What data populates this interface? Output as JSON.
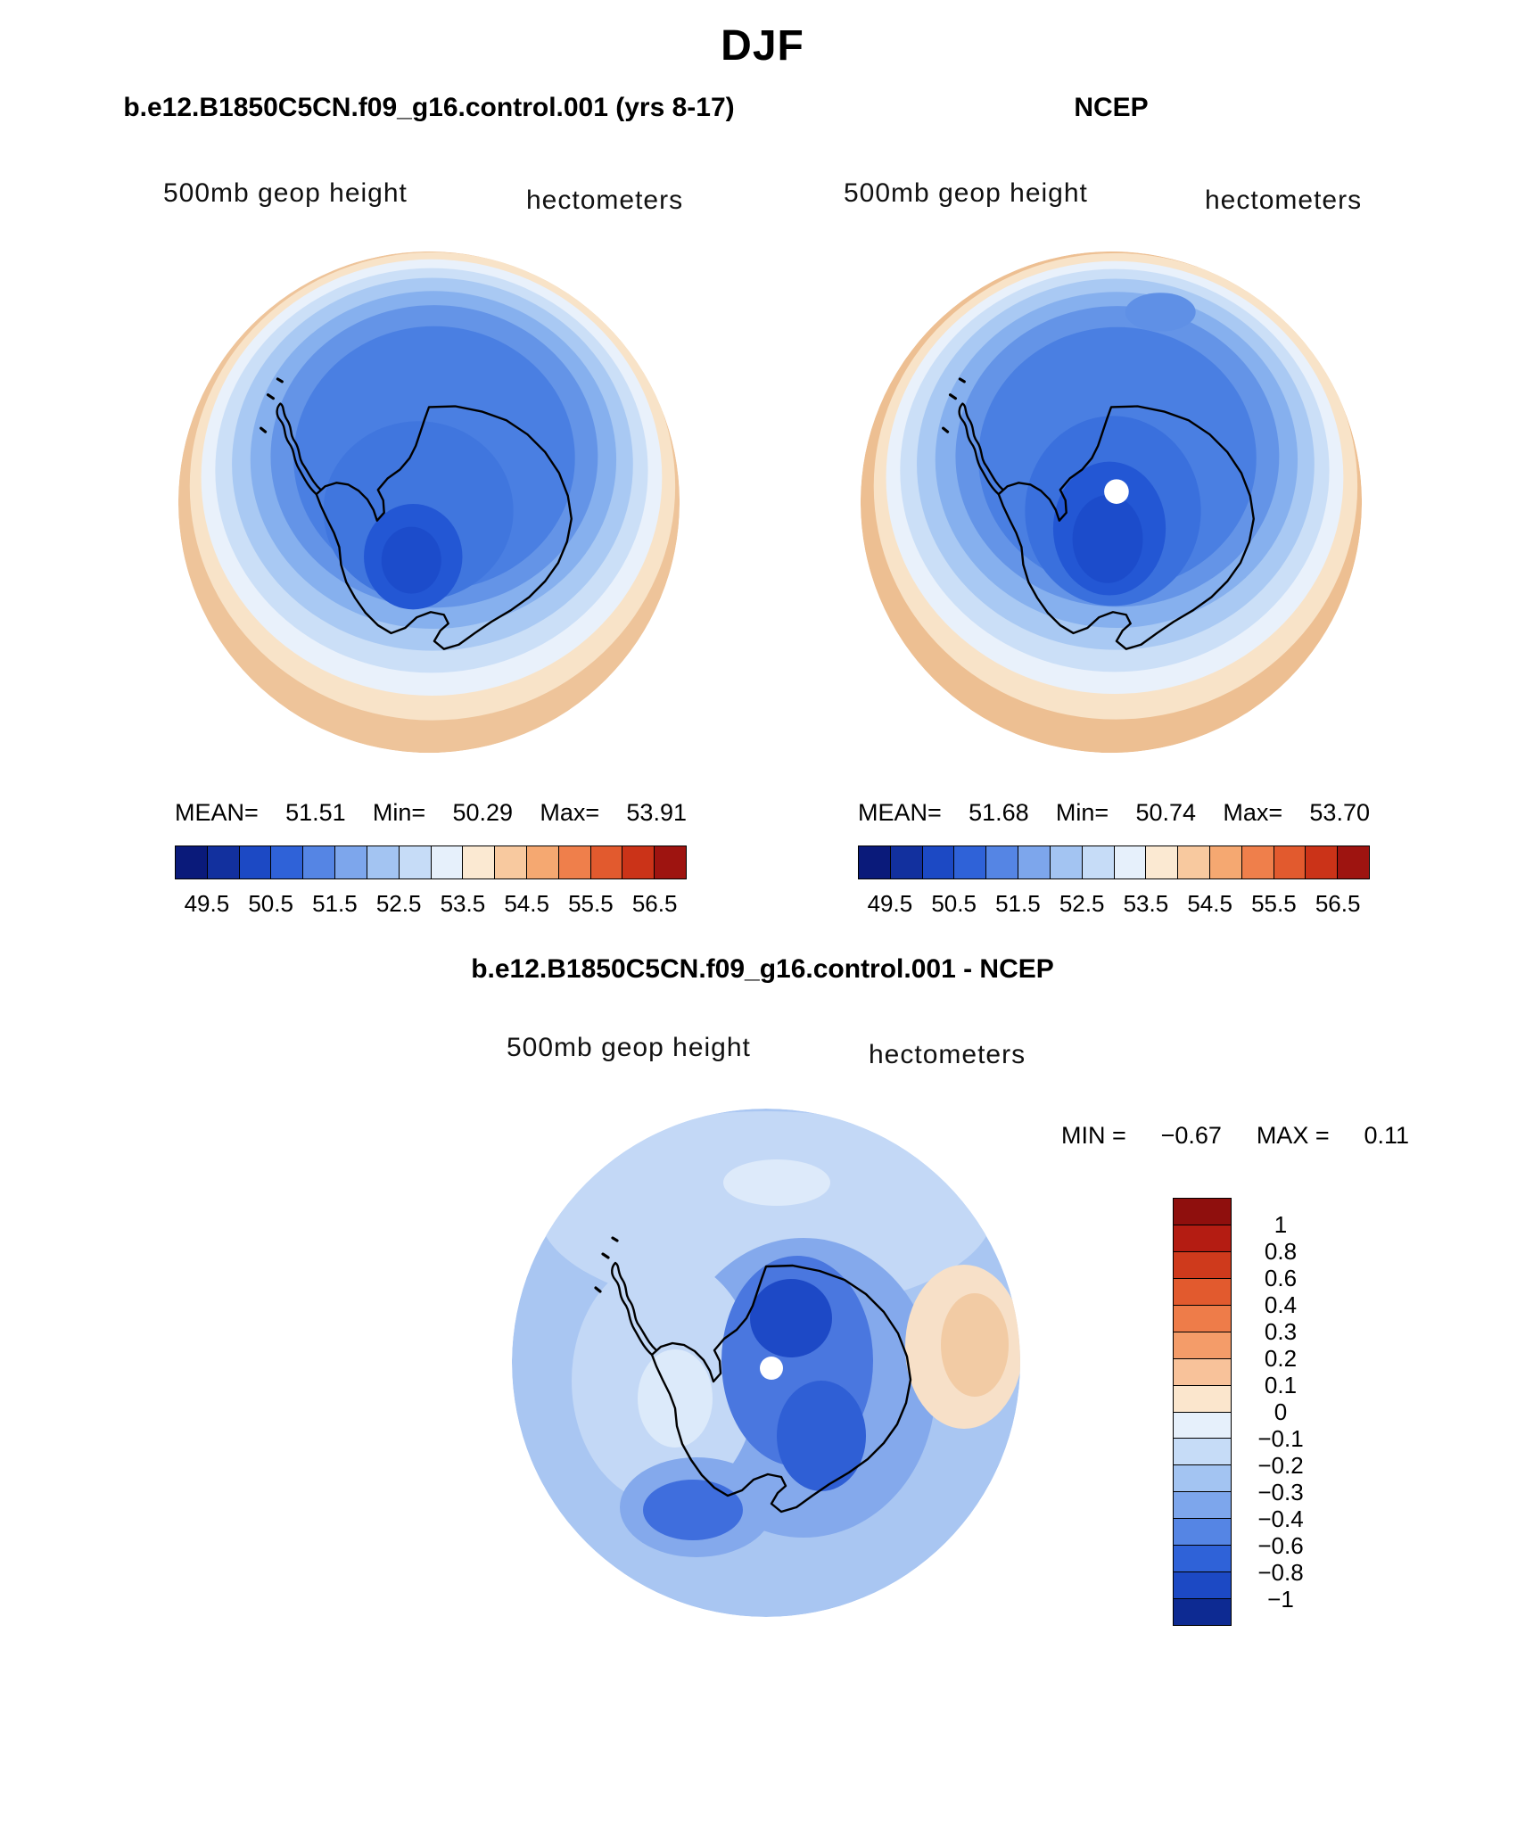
{
  "season_title": "DJF",
  "panel_model": {
    "title": "b.e12.B1850C5CN.f09_g16.control.001 (yrs 8-17)",
    "field_label": "500mb geop height",
    "units_label": "hectometers",
    "stats": {
      "mean_label": "MEAN=",
      "mean": "51.51",
      "min_label": "Min=",
      "min": "50.29",
      "max_label": "Max=",
      "max": "53.91"
    },
    "colorbar": {
      "ticks": [
        "49.5",
        "50.5",
        "51.5",
        "52.5",
        "53.5",
        "54.5",
        "55.5",
        "56.5"
      ]
    }
  },
  "panel_ncep": {
    "title": "NCEP",
    "field_label": "500mb geop height",
    "units_label": "hectometers",
    "stats": {
      "mean_label": "MEAN=",
      "mean": "51.68",
      "min_label": "Min=",
      "min": "50.74",
      "max_label": "Max=",
      "max": "53.70"
    },
    "colorbar": {
      "ticks": [
        "49.5",
        "50.5",
        "51.5",
        "52.5",
        "53.5",
        "54.5",
        "55.5",
        "56.5"
      ]
    }
  },
  "panel_diff": {
    "title": "b.e12.B1850C5CN.f09_g16.control.001 - NCEP",
    "field_label": "500mb geop height",
    "units_label": "hectometers",
    "min_label": "MIN =",
    "min": "−0.67",
    "max_label": "MAX =",
    "max": "0.11",
    "colorbar": {
      "labels": [
        "1",
        "0.8",
        "0.6",
        "0.4",
        "0.3",
        "0.2",
        "0.1",
        "0",
        "−0.1",
        "−0.2",
        "−0.3",
        "−0.4",
        "−0.6",
        "−0.8",
        "−1"
      ]
    }
  },
  "palettes": {
    "height_bar": [
      "#0a1a7a",
      "#12309e",
      "#1c49c4",
      "#2f62d8",
      "#5585e4",
      "#7da6ec",
      "#a3c4f2",
      "#c6dcf7",
      "#e6f0fb",
      "#fbe9d2",
      "#f8c99f",
      "#f5a871",
      "#ef7f4b",
      "#e25a2e",
      "#cb3318",
      "#9e1410"
    ],
    "diff_bar": [
      "#8f0f0d",
      "#b41c12",
      "#cf3a1c",
      "#e25a2e",
      "#ee7c49",
      "#f49c69",
      "#f8c29a",
      "#fbe6cd",
      "#e6f0fb",
      "#c6dcf7",
      "#a3c4f2",
      "#7da6ec",
      "#5585e4",
      "#2f62d8",
      "#1c49c4",
      "#0d2a92"
    ]
  },
  "chart_data": [
    {
      "type": "heatmap",
      "subtype": "polar-stereographic-contour-map",
      "title": "b.e12.B1850C5CN.f09_g16.control.001 (yrs 8-17)",
      "season": "DJF",
      "variable": "500mb geop height",
      "units": "hectometers",
      "region": "Antarctica / Southern Hemisphere polar cap",
      "mean": 51.51,
      "min": 50.29,
      "max": 53.91,
      "contour_levels": [
        49.5,
        50.0,
        50.5,
        51.0,
        51.5,
        52.0,
        52.5,
        53.0,
        53.5,
        54.0,
        54.5,
        55.0,
        55.5,
        56.0,
        56.5
      ],
      "colorbar_ticks": [
        49.5,
        50.5,
        51.5,
        52.5,
        53.5,
        54.5,
        55.5,
        56.5
      ],
      "legend_position": "bottom"
    },
    {
      "type": "heatmap",
      "subtype": "polar-stereographic-contour-map",
      "title": "NCEP",
      "season": "DJF",
      "variable": "500mb geop height",
      "units": "hectometers",
      "region": "Antarctica / Southern Hemisphere polar cap",
      "mean": 51.68,
      "min": 50.74,
      "max": 53.7,
      "contour_levels": [
        49.5,
        50.0,
        50.5,
        51.0,
        51.5,
        52.0,
        52.5,
        53.0,
        53.5,
        54.0,
        54.5,
        55.0,
        55.5,
        56.0,
        56.5
      ],
      "colorbar_ticks": [
        49.5,
        50.5,
        51.5,
        52.5,
        53.5,
        54.5,
        55.5,
        56.5
      ],
      "legend_position": "bottom"
    },
    {
      "type": "heatmap",
      "subtype": "polar-stereographic-contour-difference-map",
      "title": "b.e12.B1850C5CN.f09_g16.control.001 - NCEP",
      "season": "DJF",
      "variable": "500mb geop height",
      "units": "hectometers",
      "region": "Antarctica / Southern Hemisphere polar cap",
      "min": -0.67,
      "max": 0.11,
      "contour_levels": [
        -1,
        -0.8,
        -0.6,
        -0.4,
        -0.3,
        -0.2,
        -0.1,
        0,
        0.1,
        0.2,
        0.3,
        0.4,
        0.6,
        0.8,
        1
      ],
      "legend_position": "right"
    }
  ]
}
